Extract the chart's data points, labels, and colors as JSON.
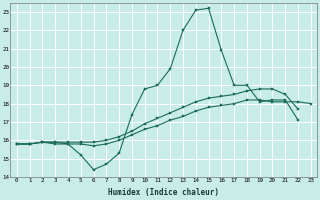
{
  "xlabel": "Humidex (Indice chaleur)",
  "bg_color": "#c8ece8",
  "grid_color": "#ffffff",
  "line_color": "#1a6b5a",
  "xlim": [
    -0.5,
    23.5
  ],
  "ylim": [
    14,
    23.5
  ],
  "xticks": [
    0,
    1,
    2,
    3,
    4,
    5,
    6,
    7,
    8,
    9,
    10,
    11,
    12,
    13,
    14,
    15,
    16,
    17,
    18,
    19,
    20,
    21,
    22,
    23
  ],
  "yticks": [
    14,
    15,
    16,
    17,
    18,
    19,
    20,
    21,
    22,
    23
  ],
  "curve1_y": [
    15.8,
    15.8,
    15.9,
    15.9,
    15.8,
    15.2,
    14.4,
    14.7,
    15.3,
    17.4,
    18.8,
    19.0,
    19.9,
    22.0,
    23.1,
    23.2,
    20.9,
    19.0,
    19.0,
    18.1,
    18.2,
    18.2,
    17.1,
    null
  ],
  "curve2_y": [
    15.8,
    15.8,
    15.9,
    15.8,
    15.8,
    15.8,
    15.7,
    15.8,
    16.0,
    16.3,
    16.6,
    16.8,
    17.1,
    17.3,
    17.6,
    17.8,
    17.9,
    18.0,
    18.2,
    18.2,
    18.1,
    18.1,
    18.1,
    18.0
  ],
  "curve3_y": [
    15.8,
    15.8,
    15.9,
    15.9,
    15.9,
    15.9,
    15.9,
    16.0,
    16.2,
    16.5,
    16.9,
    17.2,
    17.5,
    17.8,
    18.1,
    18.3,
    18.4,
    18.5,
    18.7,
    18.8,
    18.8,
    18.5,
    17.7,
    null
  ]
}
